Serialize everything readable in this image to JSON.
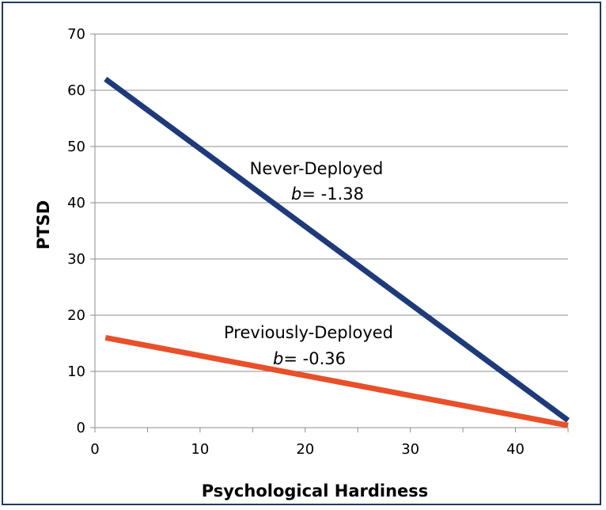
{
  "chart_data": {
    "type": "line",
    "title": "",
    "xlabel": "Psychological Hardiness",
    "ylabel": "PTSD",
    "xlim": [
      0,
      45
    ],
    "ylim": [
      0,
      70
    ],
    "xticks": [
      0,
      10,
      20,
      30,
      40
    ],
    "yticks": [
      0,
      10,
      20,
      30,
      40,
      50,
      60,
      70
    ],
    "grid": "horizontal",
    "legend": "none",
    "series": [
      {
        "name": "Never-Deployed",
        "slope_text": "-1.38",
        "color": "#1f3a7a",
        "x": [
          1,
          45
        ],
        "y": [
          62,
          1.3
        ]
      },
      {
        "name": "Previously-Deployed",
        "slope_text": "-0.36",
        "color": "#e8502a",
        "x": [
          1,
          45
        ],
        "y": [
          16,
          0.4
        ]
      }
    ],
    "slope_symbol": "b",
    "slope_equals": "= "
  }
}
